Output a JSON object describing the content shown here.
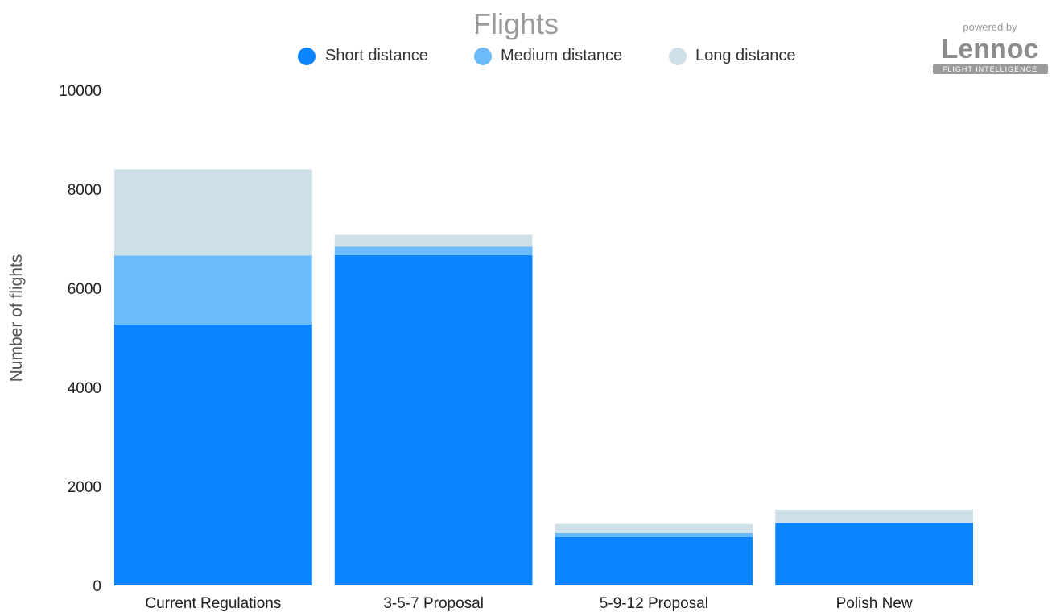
{
  "chart_data": {
    "type": "bar",
    "stacked": true,
    "title": "Flights",
    "xlabel": "",
    "ylabel": "Number of flights",
    "categories": [
      "Current Regulations",
      "3-5-7 Proposal",
      "5-9-12 Proposal",
      "Polish New"
    ],
    "series": [
      {
        "name": "Short distance",
        "values": [
          5270,
          6670,
          980,
          1260
        ],
        "color": "#0a85ff"
      },
      {
        "name": "Medium distance",
        "values": [
          1390,
          170,
          80,
          0
        ],
        "color": "#6bbafc"
      },
      {
        "name": "Long distance",
        "values": [
          1740,
          240,
          180,
          270
        ],
        "color": "#cde0e8"
      }
    ],
    "ylim": [
      0,
      10000
    ],
    "yticks": [
      0,
      2000,
      4000,
      6000,
      8000,
      10000
    ],
    "grid": false,
    "legend_position": "top-center"
  },
  "logo": {
    "powered_by": "powered by",
    "name": "Lennoc",
    "tagline": "FLIGHT INTELLIGENCE"
  }
}
